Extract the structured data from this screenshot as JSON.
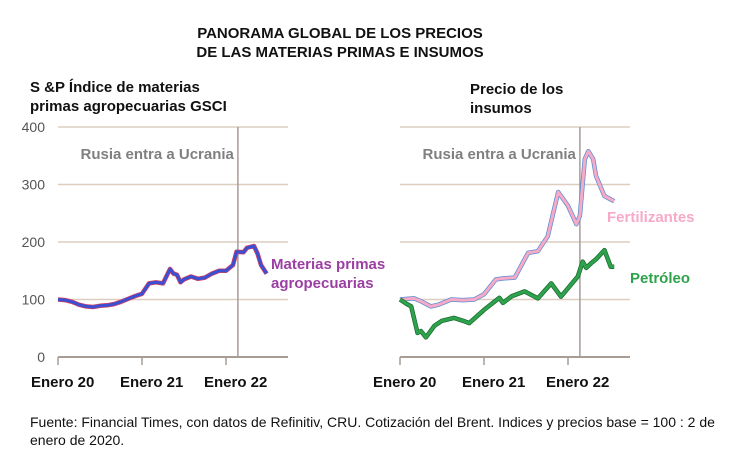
{
  "title_line1": "PANORAMA GLOBAL DE LOS PRECIOS",
  "title_line2": "DE LAS MATERIAS PRIMAS E  INSUMOS",
  "footnote": "Fuente: Financial Times, con datos de Refinitiv, CRU. Cotización del Brent. Indices y precios base = 100 :  2 de enero de 2020.",
  "colors": {
    "grid": "#dccdbf",
    "event_line": "#a89c94",
    "agro": "#3b4fd3",
    "agro_label": "#9b3fa3",
    "fert": "#f7a9c8",
    "fert_edge": "#5a8fd0",
    "oil": "#2fa24c",
    "oil_label": "#2fa24c",
    "tick_label": "#555555",
    "event_label": "#808080"
  },
  "chart_data": [
    {
      "type": "line",
      "title": "S &P Índice de materias primas agropecuarias GSCI",
      "title_lines": [
        "S &P Índice de materias",
        "primas agropecuarias GSCI"
      ],
      "x_unit": "months since Jan 2020",
      "xlim": [
        0,
        30
      ],
      "ylim": [
        0,
        400
      ],
      "yticks": [
        0,
        100,
        200,
        300,
        400
      ],
      "ytick_labels": [
        "0",
        "100",
        "200",
        "300",
        "400"
      ],
      "xticks": [
        0,
        12,
        24
      ],
      "xtick_labels": [
        "Enero 20",
        "Enero 21",
        "Enero 22"
      ],
      "grid": true,
      "annotation": {
        "x": 25.7,
        "label": "Rusia entra a Ucrania"
      },
      "series": [
        {
          "name": "Materias primas agropecuarias",
          "label_lines": [
            "Materias primas",
            "agropecuarias"
          ],
          "x": [
            0,
            1,
            2,
            3,
            4,
            5,
            6,
            7,
            8,
            9,
            10,
            11,
            12,
            13,
            14,
            15,
            16,
            16.5,
            17,
            17.5,
            18,
            19,
            20,
            21,
            22,
            23,
            24,
            25,
            25.5,
            26.5,
            27,
            28,
            28.5,
            29,
            29.8
          ],
          "y": [
            100,
            99,
            96,
            91,
            88,
            87,
            89,
            90,
            92,
            96,
            101,
            106,
            110,
            128,
            130,
            128,
            153,
            145,
            143,
            130,
            135,
            140,
            136,
            138,
            145,
            150,
            150,
            160,
            183,
            182,
            190,
            193,
            180,
            160,
            145
          ]
        }
      ]
    },
    {
      "type": "line",
      "title": "Precio de los insumos",
      "title_lines": [
        "Precio de los",
        "insumos"
      ],
      "x_unit": "months since Jan 2020",
      "xlim": [
        0,
        30
      ],
      "ylim": [
        0,
        400
      ],
      "yticks": [
        0,
        100,
        200,
        300,
        400
      ],
      "xticks": [
        0,
        12,
        24
      ],
      "xtick_labels": [
        "Enero 20",
        "Enero 21",
        "Enero 22"
      ],
      "grid": true,
      "annotation": {
        "x": 25.7,
        "label": "Rusia entra a Ucrania"
      },
      "series": [
        {
          "name": "Fertilizantes",
          "x": [
            0,
            1,
            2,
            3,
            4.4,
            5.5,
            7.3,
            9,
            10.6,
            12,
            13.7,
            15,
            16.4,
            18.3,
            19.7,
            21.1,
            22.6,
            24,
            25.2,
            25.7,
            26.4,
            26.9,
            27.6,
            28,
            29.2,
            30.6
          ],
          "y": [
            100,
            101,
            102,
            97,
            88,
            91,
            100,
            99,
            100,
            109,
            135,
            137,
            138,
            181,
            184,
            210,
            287,
            263,
            231,
            246,
            344,
            358,
            344,
            315,
            280,
            271
          ]
        },
        {
          "name": "Petróleo",
          "x": [
            0,
            1,
            1.6,
            2.5,
            3,
            3.7,
            4.9,
            6,
            7.7,
            9,
            9.9,
            12,
            14.2,
            14.7,
            16,
            17.8,
            19.7,
            21.6,
            23,
            25.4,
            26.1,
            26.6,
            27.3,
            28,
            29.2,
            29.7,
            30.1,
            30.6
          ],
          "y": [
            100,
            92,
            88,
            42,
            45,
            34,
            54,
            63,
            68,
            63,
            59,
            82,
            103,
            94,
            106,
            114,
            102,
            128,
            105,
            140,
            166,
            155,
            163,
            170,
            186,
            170,
            157,
            157
          ]
        }
      ]
    }
  ]
}
